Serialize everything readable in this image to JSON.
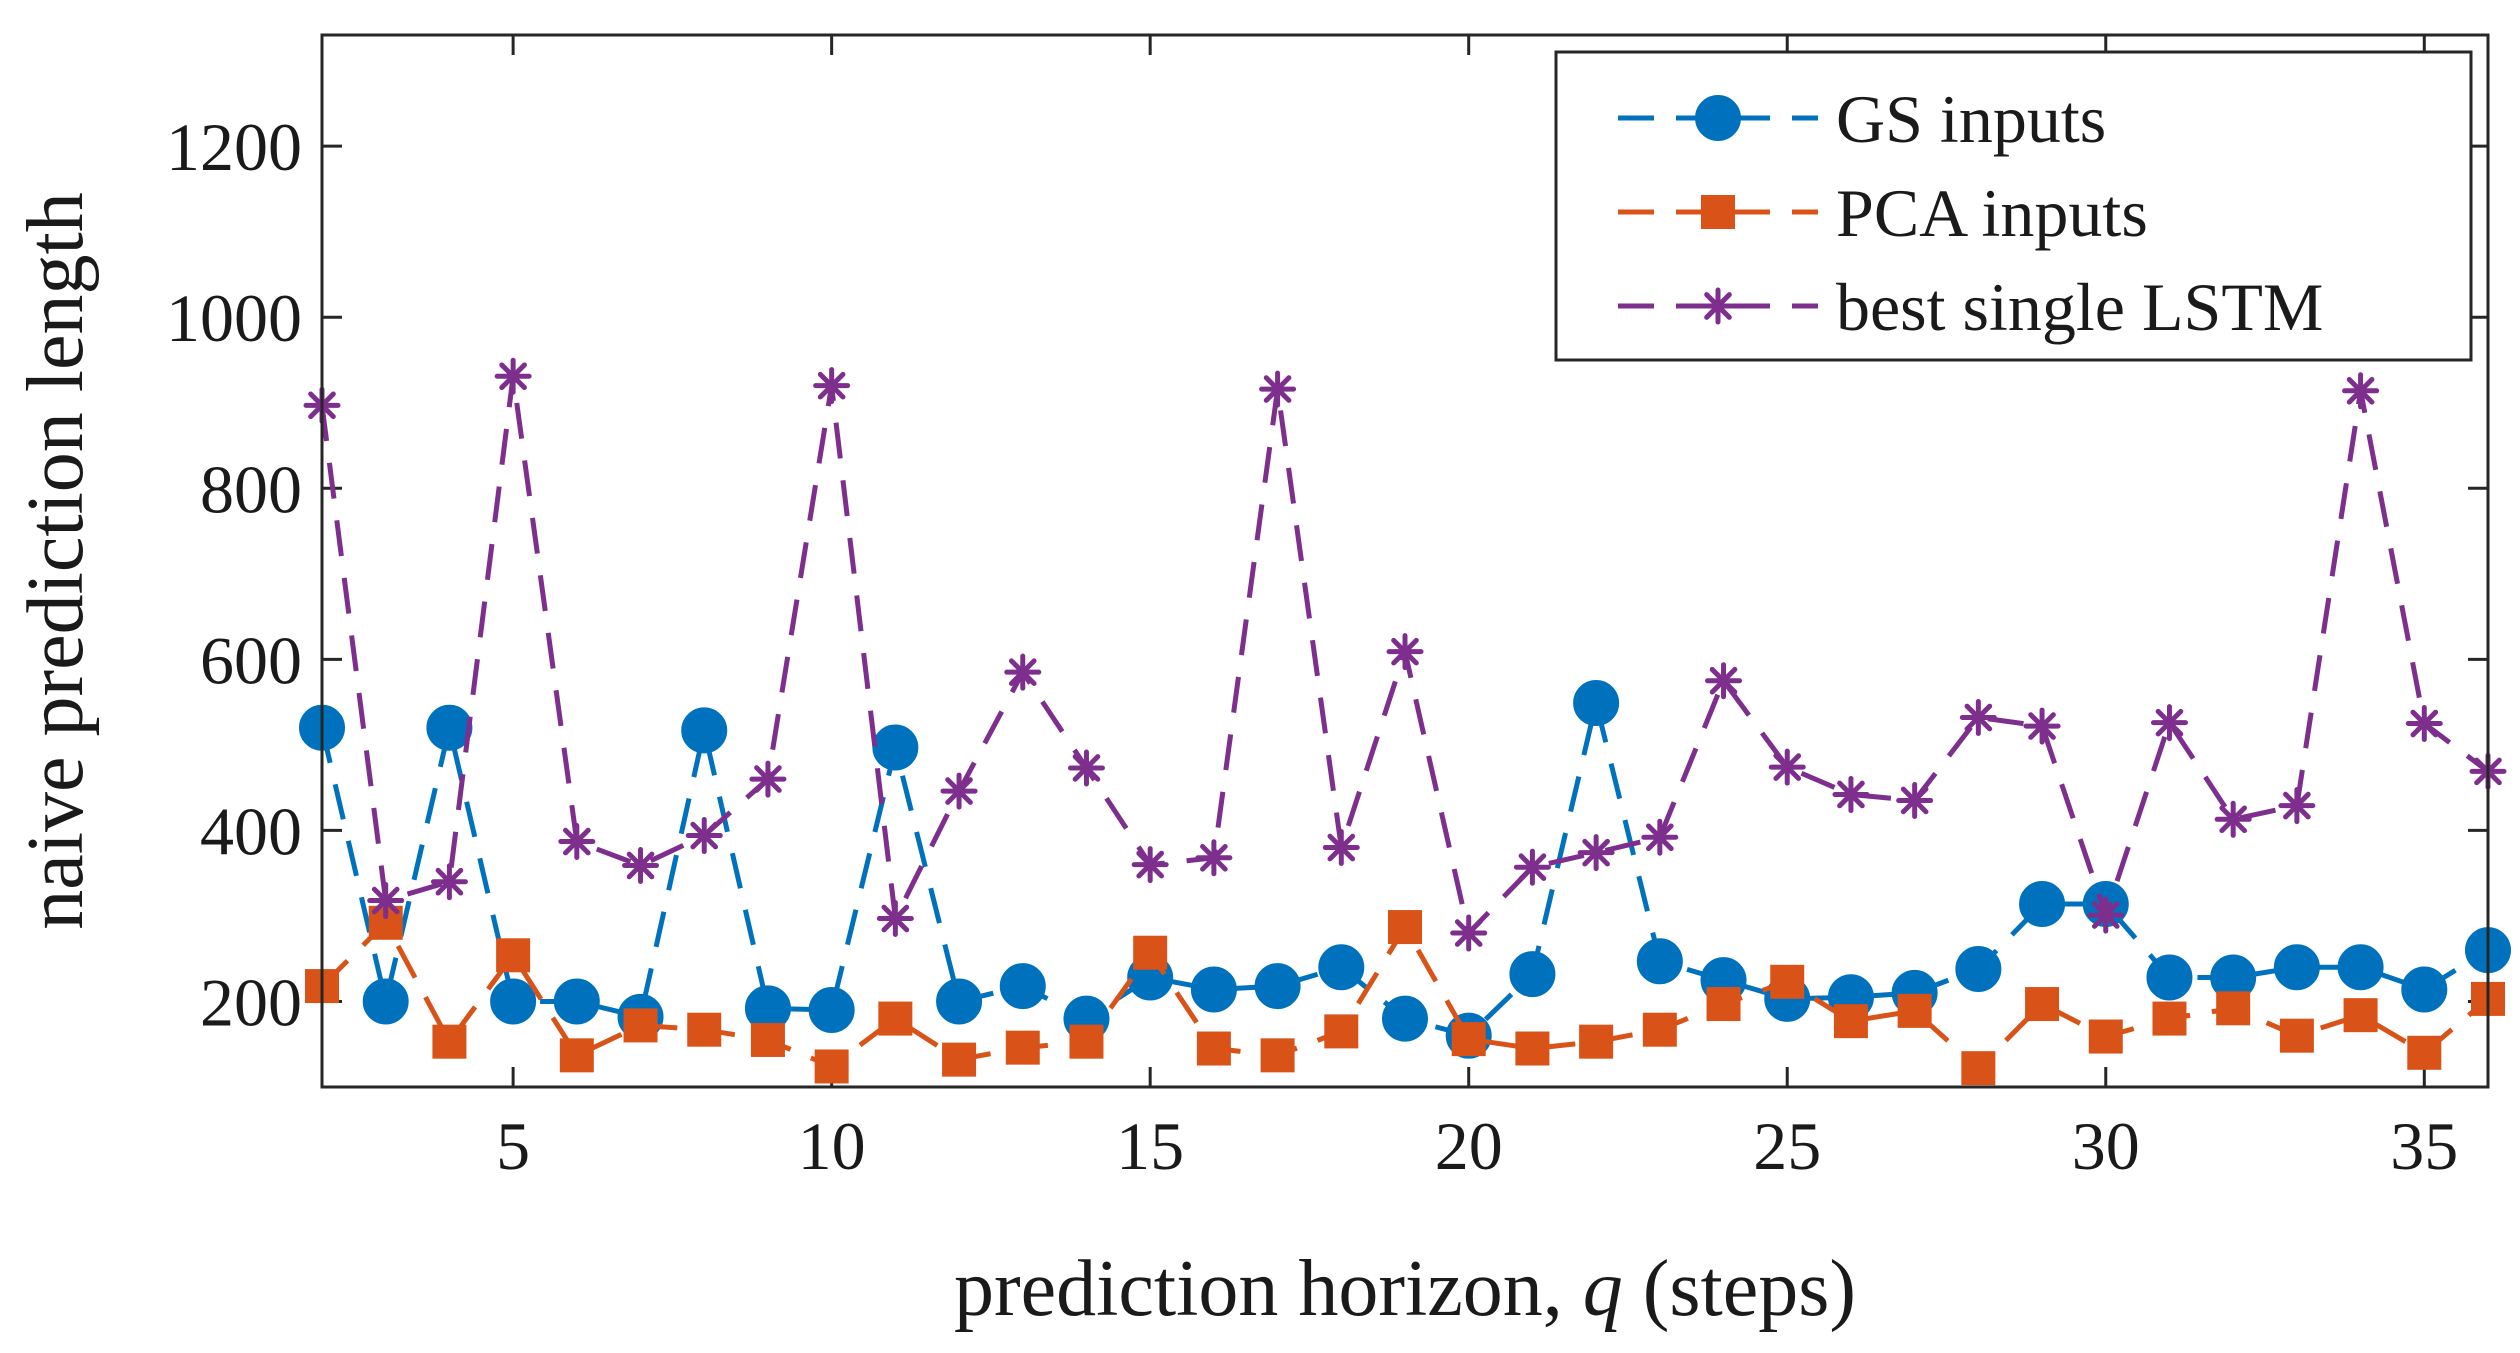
{
  "chart_data": {
    "type": "line",
    "title": "",
    "xlabel": "prediction horizon, ",
    "xlabel_var": "q",
    "xlabel_suffix": " (steps)",
    "ylabel": "naive prediction length",
    "xlim": [
      2,
      36
    ],
    "ylim": [
      100,
      1330
    ],
    "xticks": [
      5,
      10,
      15,
      20,
      25,
      30,
      35
    ],
    "yticks": [
      200,
      400,
      600,
      800,
      1000,
      1200
    ],
    "legend_position": "top-right",
    "x": [
      2,
      3,
      4,
      5,
      6,
      7,
      8,
      9,
      10,
      11,
      12,
      13,
      14,
      15,
      16,
      17,
      18,
      19,
      20,
      21,
      22,
      23,
      24,
      25,
      26,
      27,
      28,
      29,
      30,
      31,
      32,
      33,
      34,
      35,
      36
    ],
    "series": [
      {
        "name": "GS inputs",
        "color": "#0072BD",
        "marker": "circle",
        "values": [
          520,
          200,
          520,
          200,
          200,
          182,
          517,
          192,
          190,
          497,
          200,
          218,
          180,
          228,
          214,
          218,
          240,
          180,
          160,
          232,
          549,
          247,
          225,
          203,
          205,
          210,
          238,
          314,
          314,
          228,
          228,
          240,
          240,
          214,
          260
        ]
      },
      {
        "name": "PCA inputs",
        "color": "#D95319",
        "marker": "square",
        "values": [
          218,
          292,
          153,
          254,
          137,
          172,
          167,
          155,
          124,
          180,
          132,
          146,
          153,
          257,
          145,
          137,
          165,
          287,
          156,
          145,
          153,
          167,
          197,
          223,
          177,
          189,
          122,
          197,
          159,
          180,
          192,
          160,
          184,
          140,
          203
        ]
      },
      {
        "name": "best single LSTM",
        "color": "#7E2F8E",
        "marker": "asterisk",
        "values": [
          897,
          318,
          340,
          931,
          387,
          359,
          394,
          460,
          920,
          297,
          446,
          585,
          473,
          360,
          368,
          916,
          380,
          609,
          280,
          357,
          374,
          392,
          575,
          474,
          442,
          435,
          532,
          522,
          301,
          526,
          413,
          429,
          914,
          525,
          469
        ]
      }
    ]
  }
}
